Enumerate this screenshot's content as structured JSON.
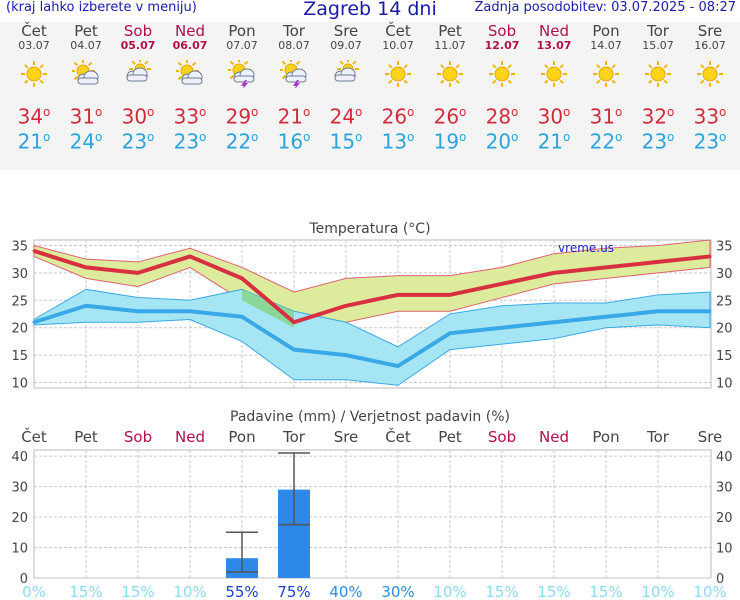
{
  "header": {
    "left": "(kraj lahko izberete v meniju)",
    "title": "Zagreb 14 dni",
    "right": "Zadnja posodobitev: 03.07.2025 - 08:27"
  },
  "days": [
    {
      "name": "Čet",
      "date": "03.07",
      "weekend": false,
      "icon": "sun-icon",
      "tmax": "34",
      "tmin": "21"
    },
    {
      "name": "Pet",
      "date": "04.07",
      "weekend": false,
      "icon": "sun-cloud-icon",
      "tmax": "31",
      "tmin": "24"
    },
    {
      "name": "Sob",
      "date": "05.07",
      "weekend": true,
      "icon": "cloud-sun-icon",
      "tmax": "30",
      "tmin": "23"
    },
    {
      "name": "Ned",
      "date": "06.07",
      "weekend": true,
      "icon": "sun-cloud-icon",
      "tmax": "33",
      "tmin": "23"
    },
    {
      "name": "Pon",
      "date": "07.07",
      "weekend": false,
      "icon": "sun-storm-icon",
      "tmax": "29",
      "tmin": "22"
    },
    {
      "name": "Tor",
      "date": "08.07",
      "weekend": false,
      "icon": "sun-storm-icon",
      "tmax": "21",
      "tmin": "16"
    },
    {
      "name": "Sre",
      "date": "09.07",
      "weekend": false,
      "icon": "cloud-sun-icon",
      "tmax": "24",
      "tmin": "15"
    },
    {
      "name": "Čet",
      "date": "10.07",
      "weekend": false,
      "icon": "sun-icon",
      "tmax": "26",
      "tmin": "13"
    },
    {
      "name": "Pet",
      "date": "11.07",
      "weekend": false,
      "icon": "sun-icon",
      "tmax": "26",
      "tmin": "19"
    },
    {
      "name": "Sob",
      "date": "12.07",
      "weekend": true,
      "icon": "sun-icon",
      "tmax": "28",
      "tmin": "20"
    },
    {
      "name": "Ned",
      "date": "13.07",
      "weekend": true,
      "icon": "sun-icon",
      "tmax": "30",
      "tmin": "21"
    },
    {
      "name": "Pon",
      "date": "14.07",
      "weekend": false,
      "icon": "sun-icon",
      "tmax": "31",
      "tmin": "22"
    },
    {
      "name": "Tor",
      "date": "15.07",
      "weekend": false,
      "icon": "sun-icon",
      "tmax": "32",
      "tmin": "23"
    },
    {
      "name": "Sre",
      "date": "16.07",
      "weekend": false,
      "icon": "sun-icon",
      "tmax": "33",
      "tmin": "23"
    }
  ],
  "colors": {
    "max_line": "#d83040",
    "min_line": "#3aa8e6",
    "max_band": "#dcec9c",
    "min_band": "#a6e6f4",
    "overlap_band": "#86d48a",
    "bar": "#2e88e8",
    "weekend": "#b0104a",
    "grid": "#c8c8c8"
  },
  "chart_data": [
    {
      "type": "line",
      "title": "Temperatura (°C)",
      "watermark": "vreme.us",
      "categories": [
        "03.07",
        "04.07",
        "05.07",
        "06.07",
        "07.07",
        "08.07",
        "09.07",
        "10.07",
        "11.07",
        "12.07",
        "13.07",
        "14.07",
        "15.07",
        "16.07"
      ],
      "ylim": [
        9,
        36
      ],
      "yticks": [
        10,
        15,
        20,
        25,
        30,
        35
      ],
      "grid": true,
      "series": [
        {
          "key": "max",
          "values": [
            34,
            31,
            30,
            33,
            29,
            21,
            24,
            26,
            26,
            28,
            30,
            31,
            32,
            33
          ],
          "band_low": [
            33,
            29,
            27.5,
            31,
            25,
            20,
            21,
            23,
            23,
            25.5,
            28,
            29,
            30,
            31
          ],
          "band_high": [
            35,
            32.5,
            32,
            34.5,
            31,
            26.5,
            29,
            29.5,
            29.5,
            31,
            33.5,
            34.5,
            35,
            36
          ]
        },
        {
          "key": "min",
          "values": [
            21,
            24,
            23,
            23,
            22,
            16,
            15,
            13,
            19,
            20,
            21,
            22,
            23,
            23
          ],
          "band_low": [
            20.5,
            21,
            21,
            21.5,
            17.5,
            10.5,
            10.5,
            9.5,
            16,
            17,
            18,
            20,
            20.5,
            20
          ],
          "band_high": [
            21.5,
            27,
            25.5,
            25,
            27,
            23,
            21,
            16.5,
            22.5,
            24,
            24.5,
            24.5,
            26,
            26.5
          ]
        }
      ]
    },
    {
      "type": "bar",
      "title": "Padavine (mm) / Verjetnost padavin (%)",
      "categories": [
        "Čet",
        "Pet",
        "Sob",
        "Ned",
        "Pon",
        "Tor",
        "Sre",
        "Čet",
        "Pet",
        "Sob",
        "Ned",
        "Pon",
        "Tor",
        "Sre"
      ],
      "weekend": [
        false,
        false,
        true,
        true,
        false,
        false,
        false,
        false,
        false,
        true,
        true,
        false,
        false,
        false
      ],
      "values": [
        0,
        0,
        0,
        0,
        6.5,
        29,
        0,
        0,
        0,
        0,
        0,
        0,
        0,
        0
      ],
      "err_low": [
        null,
        null,
        null,
        null,
        2,
        17.5,
        null,
        null,
        null,
        null,
        null,
        null,
        null,
        null
      ],
      "err_high": [
        null,
        null,
        null,
        null,
        15,
        41,
        null,
        null,
        null,
        null,
        null,
        null,
        null,
        null
      ],
      "probability": [
        "0%",
        "15%",
        "15%",
        "10%",
        "55%",
        "75%",
        "40%",
        "30%",
        "10%",
        "15%",
        "15%",
        "15%",
        "10%",
        "10%"
      ],
      "ylim": [
        0,
        42
      ],
      "yticks": [
        0,
        10,
        20,
        30,
        40
      ],
      "grid": true
    }
  ]
}
